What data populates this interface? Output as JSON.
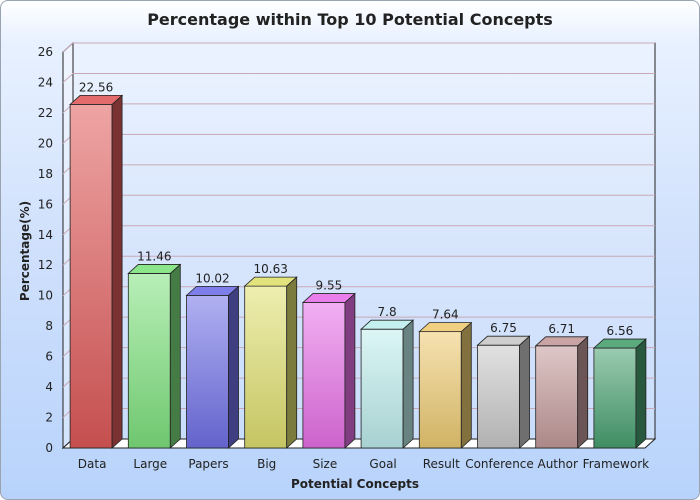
{
  "chart_data": {
    "type": "bar",
    "title": "Percentage within Top 10 Potential Concepts",
    "xlabel": "Potential Concepts",
    "ylabel": "Percentage(%)",
    "categories": [
      "Data",
      "Large",
      "Papers",
      "Big",
      "Size",
      "Goal",
      "Result",
      "Conference",
      "Author",
      "Framework"
    ],
    "values": [
      22.56,
      11.46,
      10.02,
      10.63,
      9.55,
      7.8,
      7.64,
      6.75,
      6.71,
      6.56
    ],
    "value_labels": [
      "22.56",
      "11.46",
      "10.02",
      "10.63",
      "9.55",
      "7.8",
      "7.64",
      "6.75",
      "6.71",
      "6.56"
    ],
    "ylim": [
      0,
      26
    ],
    "yticks": [
      "0",
      "2",
      "4",
      "6",
      "8",
      "10",
      "12",
      "14",
      "16",
      "18",
      "20",
      "22",
      "24",
      "26"
    ],
    "grid": true,
    "style": "3d",
    "colors": [
      "#e05a5a",
      "#7ee27e",
      "#7070e8",
      "#e0e070",
      "#e870e8",
      "#bfeeee",
      "#eecb72",
      "#c9c9c9",
      "#c49a9a",
      "#48a070"
    ]
  }
}
